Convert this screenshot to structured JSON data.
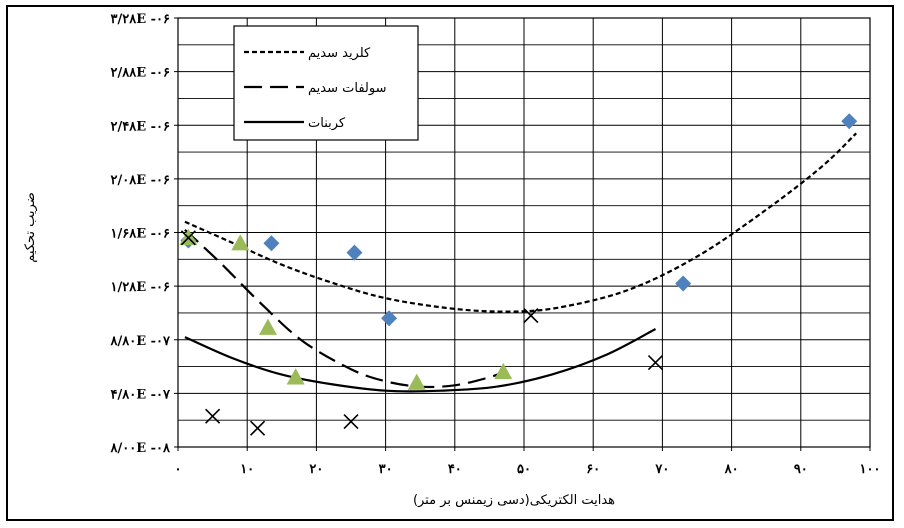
{
  "chart_data": {
    "type": "scatter",
    "xlabel": "هدایت الکتریکی(دسی زیمنس بر متر)",
    "ylabel": "ضریب تحکیم",
    "xlim": [
      0,
      100
    ],
    "ylim": [
      8e-08,
      3.28e-06
    ],
    "x_ticks": [
      {
        "value": 0,
        "label": "۰"
      },
      {
        "value": 10,
        "label": "۱۰"
      },
      {
        "value": 20,
        "label": "۲۰"
      },
      {
        "value": 30,
        "label": "۳۰"
      },
      {
        "value": 40,
        "label": "۴۰"
      },
      {
        "value": 50,
        "label": "۵۰"
      },
      {
        "value": 60,
        "label": "۶۰"
      },
      {
        "value": 70,
        "label": "۷۰"
      },
      {
        "value": 80,
        "label": "۸۰"
      },
      {
        "value": 90,
        "label": "۹۰"
      },
      {
        "value": 100,
        "label": "۱۰۰"
      }
    ],
    "y_ticks": [
      {
        "value": 8e-08,
        "label": "۸/۰۰E -۰۸"
      },
      {
        "value": 4.8e-07,
        "label": "۴/۸۰E -۰۷"
      },
      {
        "value": 8.8e-07,
        "label": "۸/۸۰E -۰۷"
      },
      {
        "value": 1.28e-06,
        "label": "۱/۲۸E -۰۶"
      },
      {
        "value": 1.68e-06,
        "label": "۱/۶۸E -۰۶"
      },
      {
        "value": 2.08e-06,
        "label": "۲/۰۸E -۰۶"
      },
      {
        "value": 2.48e-06,
        "label": "۲/۴۸E -۰۶"
      },
      {
        "value": 2.88e-06,
        "label": "۲/۸۸E -۰۶"
      },
      {
        "value": 3.28e-06,
        "label": "۳/۲۸E -۰۶"
      }
    ],
    "grid": true,
    "legend_position": "top-left",
    "series": [
      {
        "name": "کلرید سدیم",
        "marker": "diamond",
        "color": "#4f81bd",
        "line_style": "short-dash",
        "points": [
          [
            1.5,
            1.62e-06
          ],
          [
            13.5,
            1.6e-06
          ],
          [
            25.5,
            1.53e-06
          ],
          [
            30.5,
            1.04e-06
          ],
          [
            73,
            1.3e-06
          ],
          [
            97,
            2.51e-06
          ]
        ],
        "trend": [
          [
            1,
            1.76e-06
          ],
          [
            8,
            1.6e-06
          ],
          [
            15,
            1.44e-06
          ],
          [
            22,
            1.31e-06
          ],
          [
            30,
            1.19e-06
          ],
          [
            40,
            1.11e-06
          ],
          [
            48,
            1.09e-06
          ],
          [
            55,
            1.12e-06
          ],
          [
            65,
            1.25e-06
          ],
          [
            75,
            1.5e-06
          ],
          [
            85,
            1.85e-06
          ],
          [
            93,
            2.17e-06
          ],
          [
            98,
            2.42e-06
          ]
        ]
      },
      {
        "name": "سولفات سدیم",
        "marker": "triangle",
        "color": "#9bbb59",
        "line_style": "long-dash",
        "points": [
          [
            1.5,
            1.64e-06
          ],
          [
            9,
            1.6e-06
          ],
          [
            13,
            9.7e-07
          ],
          [
            17,
            6e-07
          ],
          [
            34.5,
            5.6e-07
          ],
          [
            47,
            6.4e-07
          ]
        ],
        "trend": [
          [
            1,
            1.7e-06
          ],
          [
            6,
            1.46e-06
          ],
          [
            12,
            1.15e-06
          ],
          [
            18,
            8.7e-07
          ],
          [
            25,
            6.6e-07
          ],
          [
            30,
            5.7e-07
          ],
          [
            35,
            5.3e-07
          ],
          [
            40,
            5.4e-07
          ],
          [
            45,
            6e-07
          ],
          [
            47,
            6.4e-07
          ]
        ]
      },
      {
        "name": "کربنات",
        "marker": "x",
        "color": "#000000",
        "line_style": "solid",
        "points": [
          [
            1.5,
            1.64e-06
          ],
          [
            5,
            3.1e-07
          ],
          [
            11.5,
            2.2e-07
          ],
          [
            25,
            2.7e-07
          ],
          [
            51,
            1.06e-06
          ],
          [
            69,
            7.1e-07
          ]
        ],
        "trend": [
          [
            1,
            9e-07
          ],
          [
            8,
            7.4e-07
          ],
          [
            15,
            6.2e-07
          ],
          [
            22,
            5.5e-07
          ],
          [
            30,
            5e-07
          ],
          [
            38,
            5e-07
          ],
          [
            46,
            5.3e-07
          ],
          [
            54,
            6.2e-07
          ],
          [
            62,
            7.7e-07
          ],
          [
            69,
            9.6e-07
          ]
        ]
      }
    ]
  }
}
